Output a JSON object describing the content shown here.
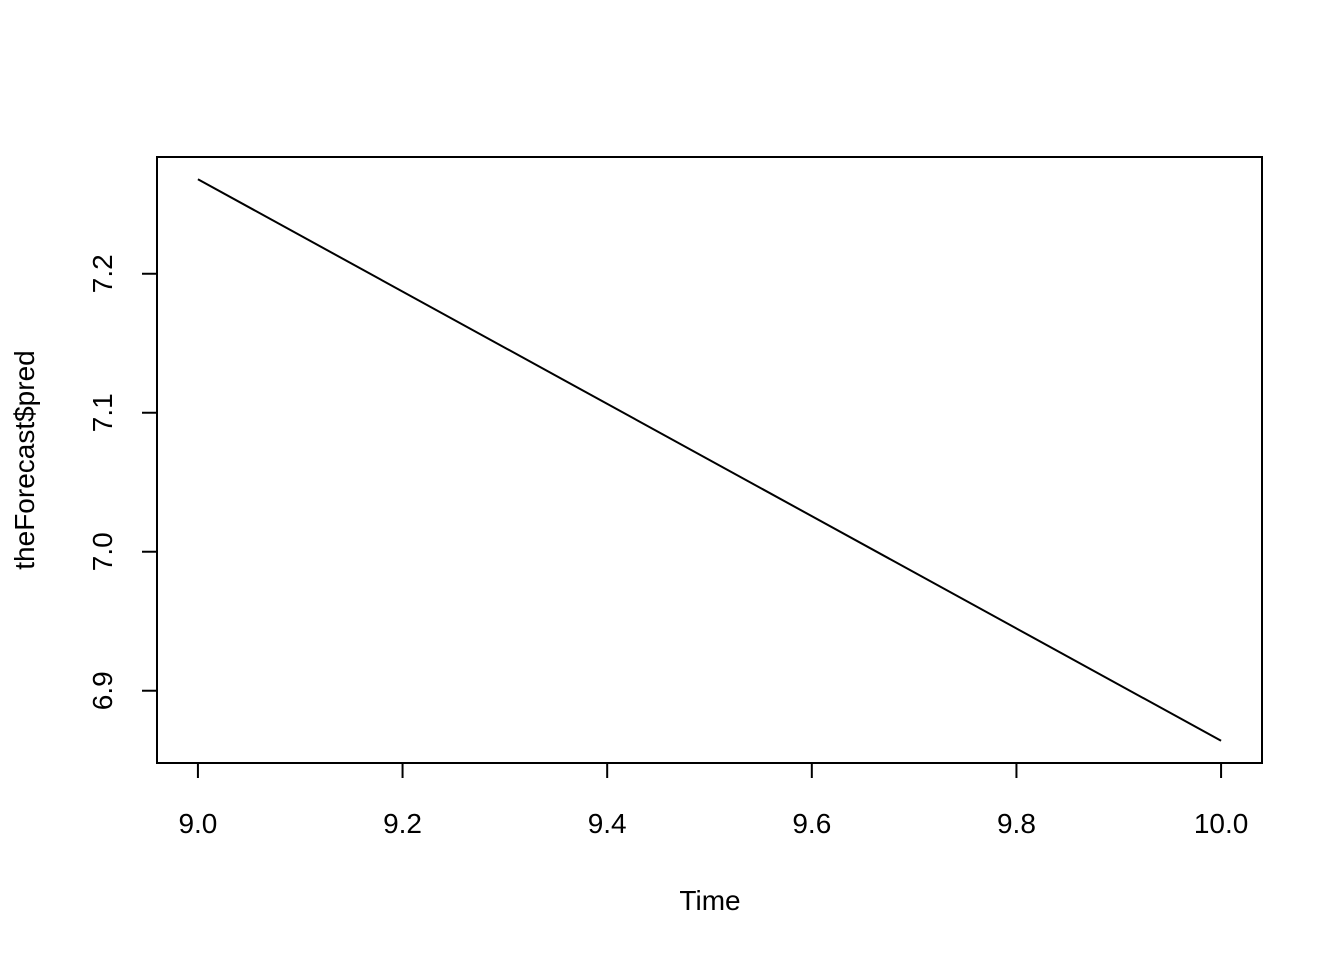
{
  "chart_data": {
    "type": "line",
    "x_label": "Time",
    "y_label": "theForecast$pred",
    "x": [
      9,
      10
    ],
    "series": [
      {
        "values": [
          7.268,
          6.864
        ],
        "color": "#000000"
      }
    ],
    "xlim": [
      8.96,
      10.04
    ],
    "xticks": [
      {
        "value": 9,
        "label": "9.0"
      },
      9.2,
      9.4,
      9.6,
      9.8,
      {
        "value": 10,
        "label": "10.0"
      }
    ],
    "ylim": [
      6.848,
      7.284
    ],
    "yticks": [
      6.9,
      {
        "value": 7,
        "label": "7.0"
      },
      7.1,
      7.2
    ]
  }
}
